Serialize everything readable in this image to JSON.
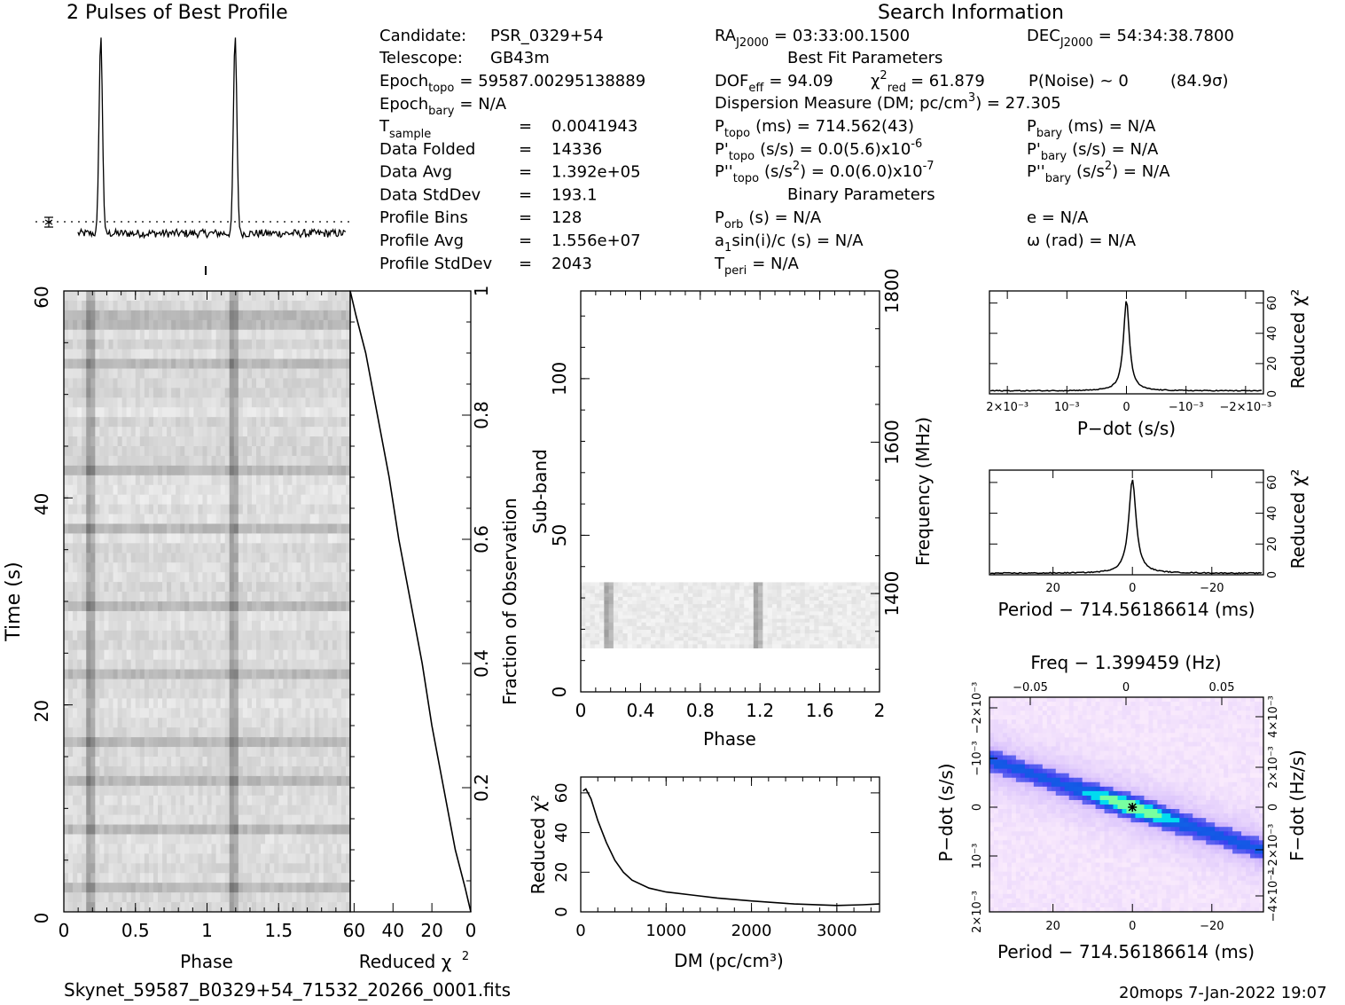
{
  "profile_panel": {
    "title": "2 Pulses of Best Profile"
  },
  "search_info": {
    "title": "Search Information",
    "candidate": {
      "label": "Candidate:",
      "value": "PSR_0329+54"
    },
    "telescope": {
      "label": "Telescope:",
      "value": "GB43m"
    },
    "epoch_topo": {
      "label": "Epoch",
      "sub": "topo",
      "value": "= 59587.00295138889"
    },
    "epoch_bary": {
      "label": "Epoch",
      "sub": "bary",
      "value": "= N/A"
    },
    "left_table": [
      {
        "label": "T",
        "sub": "sample",
        "eq": "=",
        "value": "0.0041943"
      },
      {
        "label": "Data Folded",
        "sub": "",
        "eq": "=",
        "value": "14336"
      },
      {
        "label": "Data Avg",
        "sub": "",
        "eq": "=",
        "value": "1.392e+05"
      },
      {
        "label": "Data StdDev",
        "sub": "",
        "eq": "=",
        "value": "193.1"
      },
      {
        "label": "Profile Bins",
        "sub": "",
        "eq": "=",
        "value": "128"
      },
      {
        "label": "Profile Avg",
        "sub": "",
        "eq": "=",
        "value": "1.556e+07"
      },
      {
        "label": "Profile StdDev",
        "sub": "",
        "eq": "=",
        "value": "2043"
      }
    ],
    "ra": {
      "label": "RA",
      "sub": "J2000",
      "value": "= 03:33:00.1500"
    },
    "dec": {
      "label": "DEC",
      "sub": "J2000",
      "value": "= 54:34:38.7800"
    },
    "best_fit_title": "Best Fit Parameters",
    "dof": {
      "label": "DOF",
      "sub": "eff",
      "value": "= 94.09"
    },
    "chi2": {
      "label": "χ",
      "sup": "2",
      "sub": "red",
      "value": "= 61.879"
    },
    "pnoise": "P(Noise) ~ 0",
    "sigma": "(84.9σ)",
    "dm_line": {
      "pre": "Dispersion Measure (DM; pc/cm",
      "sup": "3",
      "post": ") = 27.305"
    },
    "ptopo": {
      "label": "P",
      "sub": "topo",
      "value": "(ms) = 714.562(43)"
    },
    "pbary": {
      "label": "P",
      "sub": "bary",
      "value": "(ms) = N/A"
    },
    "pdot_topo": {
      "label": "P'",
      "sub": "topo",
      "value": "(s/s) = 0.0(5.6)x10",
      "exp": "-6"
    },
    "pdot_bary": {
      "label": "P'",
      "sub": "bary",
      "value": "(s/s) = N/A"
    },
    "pddot_topo": {
      "label": "P''",
      "sub": "topo",
      "value": "(s/s",
      "sup": "2",
      "rest": ") = 0.0(6.0)x10",
      "exp": "-7"
    },
    "pddot_bary": {
      "label": "P''",
      "sub": "bary",
      "value": "(s/s",
      "sup": "2",
      "rest": ") = N/A"
    },
    "binary_title": "Binary Parameters",
    "porb": {
      "label": "P",
      "sub": "orb",
      "value": "(s) = N/A"
    },
    "e": "e = N/A",
    "a1sini": {
      "pre": "a",
      "sub": "1",
      "post": "sin(i)/c (s) = N/A"
    },
    "omega": "ω (rad) = N/A",
    "tperi": {
      "label": "T",
      "sub": "peri",
      "value": "= N/A"
    }
  },
  "footer": {
    "filename": "Skynet_59587_B0329+54_71532_20266_0001.fits",
    "credit": "20mops  7-Jan-2022 19:07"
  },
  "chart_data": [
    {
      "id": "pulse_profile",
      "type": "line",
      "title": "2 Pulses of Best Profile",
      "x": "phase 0–2 (two rotations, 128 bins each)",
      "peak_phase": [
        0.17,
        1.17
      ],
      "peak_level": 1.0,
      "baseline_level": 0.03,
      "noise_level": 0.04
    },
    {
      "id": "time_phase",
      "type": "heatmap",
      "xlabel": "Phase",
      "ylabel": "Time (s)",
      "xlim": [
        0,
        2
      ],
      "ylim": [
        0,
        60
      ],
      "xticks": [
        "0",
        "0.5",
        "1",
        "1.5"
      ],
      "yticks": [
        "0",
        "20",
        "40",
        "60"
      ],
      "pulse_phase": [
        0.17,
        1.17
      ],
      "colormap": "gray_r"
    },
    {
      "id": "chi2_vs_time",
      "type": "line",
      "xlabel": "Reduced χ²",
      "ylabel": "Fraction of Observation",
      "xlim": [
        62,
        0
      ],
      "ylim": [
        0,
        1
      ],
      "xticks": [
        "60",
        "40",
        "20",
        "0"
      ],
      "yticks": [
        "0.2",
        "0.4",
        "0.6",
        "0.8",
        "1"
      ],
      "points": [
        [
          0,
          0
        ],
        [
          3,
          0.04
        ],
        [
          8,
          0.1
        ],
        [
          14,
          0.2
        ],
        [
          20,
          0.3
        ],
        [
          25,
          0.4
        ],
        [
          31,
          0.5
        ],
        [
          37,
          0.6
        ],
        [
          42,
          0.7
        ],
        [
          48,
          0.8
        ],
        [
          54,
          0.9
        ],
        [
          59,
          0.96
        ],
        [
          62,
          1.0
        ]
      ]
    },
    {
      "id": "phase_subband",
      "type": "heatmap",
      "xlabel": "Phase",
      "ylabel": "Sub-band",
      "y2label": "Frequency (MHz)",
      "xlim": [
        0,
        2
      ],
      "ylim": [
        0,
        128
      ],
      "xticks": [
        "0",
        "0.4",
        "0.8",
        "1.2",
        "1.6",
        "2"
      ],
      "yticks": [
        "0",
        "50",
        "100"
      ],
      "y2ticks": [
        "1400",
        "1600",
        "1800"
      ],
      "y2lim": [
        1270,
        1800
      ],
      "band_subbands": [
        14,
        35
      ],
      "pulse_phase": [
        0.17,
        1.17
      ]
    },
    {
      "id": "dm_curve",
      "type": "line",
      "xlabel": "DM (pc/cm³)",
      "ylabel": "Reduced χ²",
      "xlim": [
        0,
        3500
      ],
      "ylim": [
        0,
        68
      ],
      "xticks": [
        "0",
        "1000",
        "2000",
        "3000"
      ],
      "yticks": [
        "0",
        "20",
        "40",
        "60"
      ],
      "points": [
        [
          27,
          61
        ],
        [
          60,
          62
        ],
        [
          120,
          57
        ],
        [
          200,
          46
        ],
        [
          300,
          35
        ],
        [
          400,
          26
        ],
        [
          500,
          20
        ],
        [
          600,
          16
        ],
        [
          800,
          12
        ],
        [
          1000,
          10
        ],
        [
          1300,
          8.5
        ],
        [
          1600,
          7
        ],
        [
          2000,
          5.5
        ],
        [
          2500,
          4
        ],
        [
          3000,
          3.2
        ],
        [
          3300,
          3.6
        ],
        [
          3500,
          4
        ]
      ]
    },
    {
      "id": "pdot_curve",
      "type": "line",
      "xlabel": "P−dot (s/s)",
      "ylabel": "Reduced χ²",
      "xlim": [
        0.0023,
        -0.0023
      ],
      "ylim": [
        0,
        68
      ],
      "xticks": [
        "2×10⁻³",
        "10⁻³",
        "0",
        "−10⁻³",
        "−2×10⁻³"
      ],
      "yticks": [
        "0",
        "20",
        "40",
        "60"
      ],
      "peak": 62,
      "baseline": 2
    },
    {
      "id": "period_curve",
      "type": "line",
      "xlabel": "Period − 714.56186614 (ms)",
      "ylabel": "Reduced χ²",
      "xlim": [
        36,
        -33
      ],
      "ylim": [
        0,
        68
      ],
      "xticks": [
        "20",
        "0",
        "−20"
      ],
      "yticks": [
        "0",
        "20",
        "40",
        "60"
      ],
      "peak": 62,
      "baseline": 1
    },
    {
      "id": "period_pdot_plane",
      "type": "heatmap",
      "xlabel": "Period − 714.56186614 (ms)",
      "ylabel": "P−dot (s/s)",
      "x2label": "Freq − 1.399459 (Hz)",
      "y2label": "F−dot (Hz/s)",
      "xlim": [
        36,
        -33
      ],
      "xticks": [
        "20",
        "0",
        "−20"
      ],
      "x2ticks": [
        "−0.05",
        "0",
        "0.05"
      ],
      "yticks": [
        "2×10⁻³",
        "10⁻³",
        "0",
        "−10⁻³",
        "−2×10⁻³"
      ],
      "y2ticks": [
        "−4×10⁻³",
        "−2×10⁻³",
        "0",
        "2×10⁻³",
        "4×10⁻³"
      ],
      "best_fit": [
        0,
        0
      ]
    }
  ]
}
